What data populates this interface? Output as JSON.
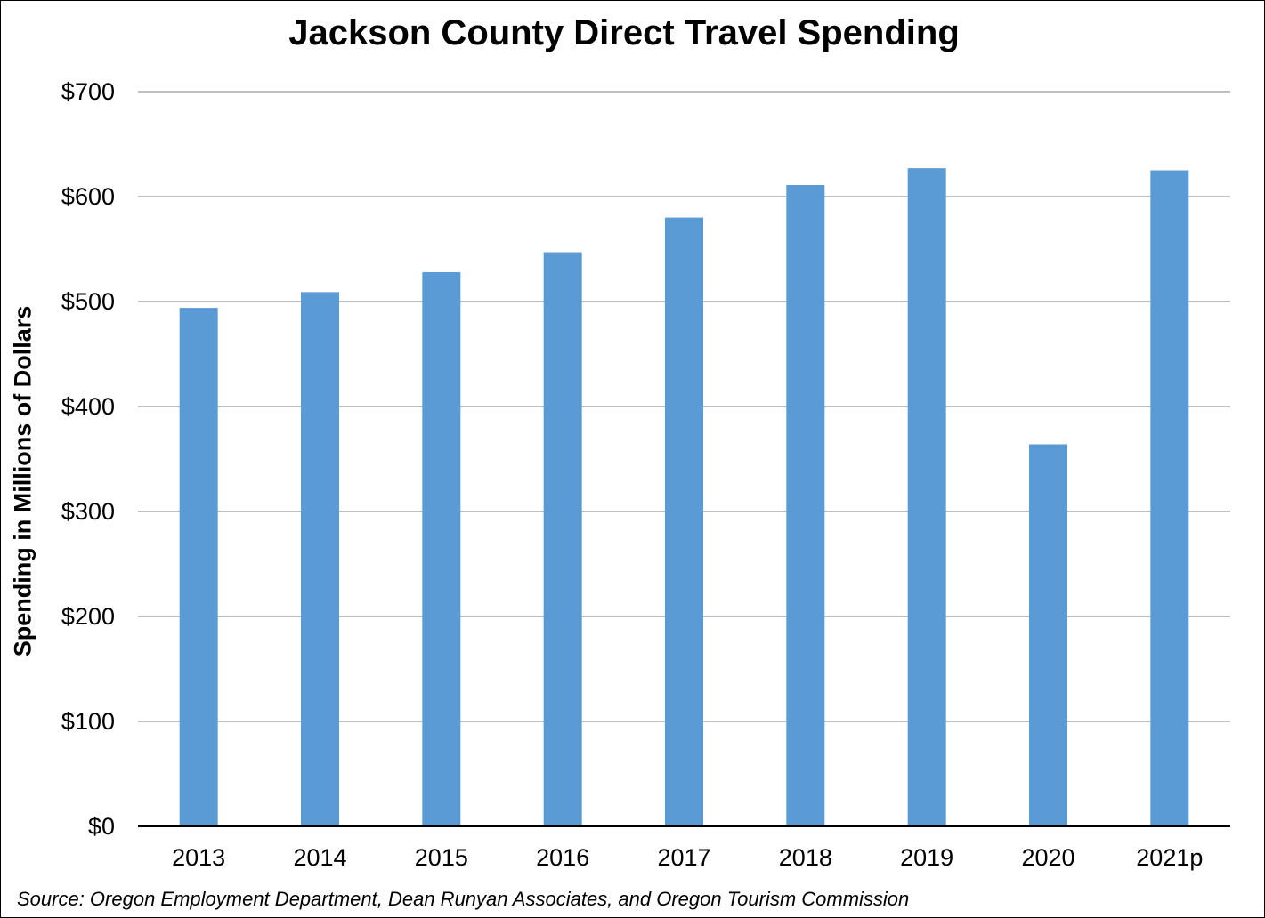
{
  "colors": {
    "bar": "#5b9bd5",
    "grid": "#bfbfbf",
    "axis": "#000000"
  },
  "chart_data": {
    "type": "bar",
    "title": "Jackson County Direct Travel Spending",
    "xlabel": "",
    "ylabel": "Spending in Millions of Dollars",
    "categories": [
      "2013",
      "2014",
      "2015",
      "2016",
      "2017",
      "2018",
      "2019",
      "2020",
      "2021p"
    ],
    "series": [
      {
        "values": [
          494,
          509,
          528,
          547,
          580,
          611,
          627,
          364,
          625
        ]
      }
    ],
    "ylim": [
      0,
      700
    ],
    "yticks": [
      0,
      100,
      200,
      300,
      400,
      500,
      600,
      700
    ],
    "ytick_labels": [
      "$0",
      "$100",
      "$200",
      "$300",
      "$400",
      "$500",
      "$600",
      "$700"
    ],
    "grid": true,
    "legend": "none",
    "source": "Source: Oregon Employment Department, Dean Runyan Associates, and Oregon Tourism Commission"
  }
}
